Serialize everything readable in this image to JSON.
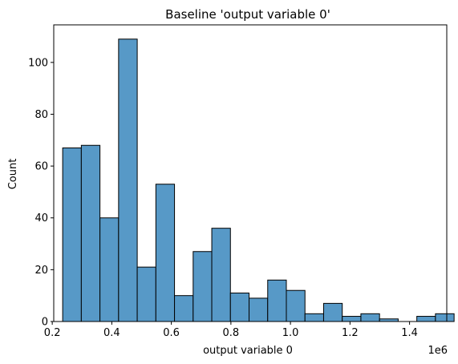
{
  "chart_data": {
    "type": "bar",
    "title": "Baseline 'output variable 0'",
    "xlabel": "output variable 0",
    "ylabel": "Count",
    "x_offset_label": "1e6",
    "xlim": [
      0.205,
      1.525
    ],
    "ylim": [
      0,
      114.5
    ],
    "x_ticks": [
      0.2,
      0.4,
      0.6,
      0.8,
      1.0,
      1.2,
      1.4
    ],
    "x_tick_labels": [
      "0.2",
      "0.4",
      "0.6",
      "0.8",
      "1.0",
      "1.2",
      "1.4"
    ],
    "y_ticks": [
      0,
      20,
      40,
      60,
      80,
      100
    ],
    "y_tick_labels": [
      "0",
      "20",
      "40",
      "60",
      "80",
      "100"
    ],
    "bin_start": 0.235,
    "bin_width": 0.0626,
    "values": [
      67,
      68,
      40,
      109,
      21,
      53,
      10,
      27,
      36,
      11,
      9,
      16,
      12,
      3,
      7,
      2,
      3,
      1,
      0,
      2,
      3
    ],
    "bar_color": "#5799c7",
    "edge_color": "#000000",
    "grid": false,
    "legend": "none"
  }
}
